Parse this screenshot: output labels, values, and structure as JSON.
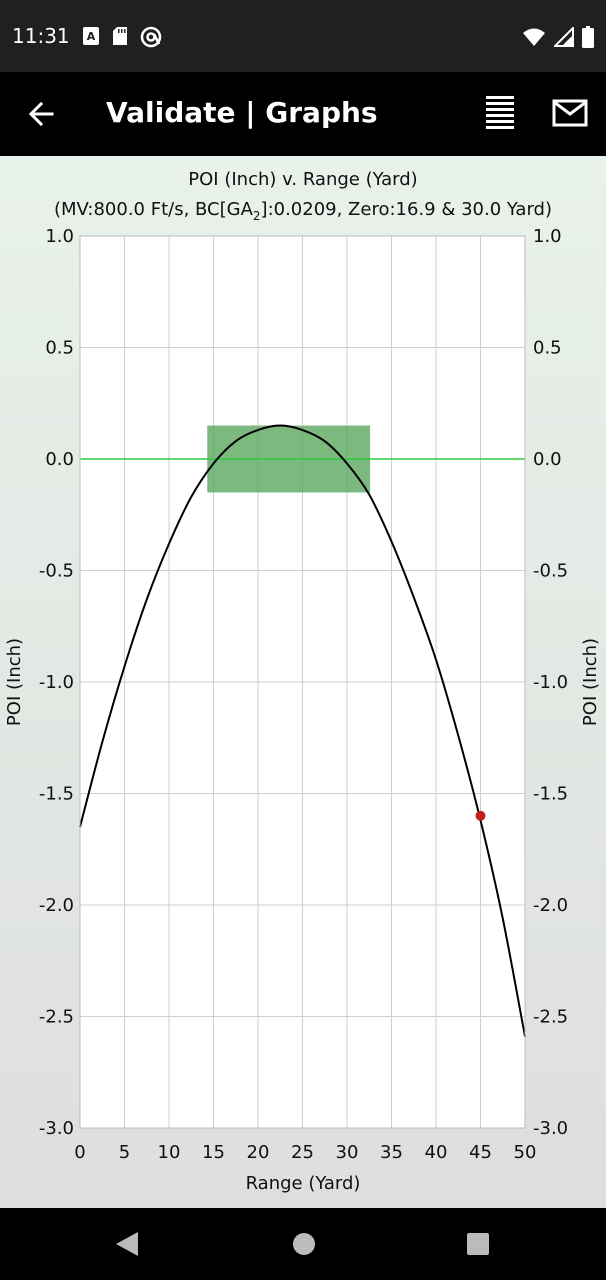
{
  "status_bar": {
    "time": "11:31",
    "left_icons": [
      "keyboard-a-icon",
      "sd-card-icon",
      "at-sign-icon"
    ],
    "right_icons": [
      "wifi-icon",
      "cell-signal-icon",
      "battery-icon"
    ]
  },
  "app_bar": {
    "title": "Validate | Graphs",
    "icons": [
      "back-arrow-icon",
      "menu-lines-icon",
      "mail-icon"
    ]
  },
  "chart_data": {
    "type": "line",
    "title": "POI (Inch) v. Range (Yard)",
    "subtitle_parts": {
      "pre": "(MV:800.0 Ft/s, BC[GA",
      "sub": "2",
      "post": "]:0.0209, Zero:16.9 & 30.0 Yard)"
    },
    "xlabel": "Range (Yard)",
    "ylabel": "POI (Inch)",
    "ylabel_right": "POI (Inch)",
    "xlim": [
      0,
      50
    ],
    "ylim": [
      -3.0,
      1.0
    ],
    "x_ticks": [
      "0",
      "5",
      "10",
      "15",
      "20",
      "25",
      "30",
      "35",
      "40",
      "45",
      "50"
    ],
    "x_tick_values": [
      0,
      5,
      10,
      15,
      20,
      25,
      30,
      35,
      40,
      45,
      50
    ],
    "y_ticks": [
      "1.0",
      "0.5",
      "0.0",
      "-0.5",
      "-1.0",
      "-1.5",
      "-2.0",
      "-2.5",
      "-3.0"
    ],
    "y_tick_values": [
      1.0,
      0.5,
      0.0,
      -0.5,
      -1.0,
      -1.5,
      -2.0,
      -2.5,
      -3.0
    ],
    "grid": true,
    "series": [
      {
        "color": "#000000",
        "x": [
          0,
          2.5,
          5,
          7.5,
          10,
          12.5,
          15,
          17.5,
          20,
          22.5,
          25,
          27.5,
          30,
          32.5,
          35,
          37.5,
          40,
          42.5,
          45,
          47.5,
          50
        ],
        "y": [
          -1.65,
          -1.27,
          -0.93,
          -0.63,
          -0.38,
          -0.17,
          -0.02,
          0.08,
          0.13,
          0.15,
          0.13,
          0.08,
          -0.02,
          -0.16,
          -0.37,
          -0.62,
          -0.9,
          -1.24,
          -1.62,
          -2.06,
          -2.59
        ]
      }
    ],
    "zero_line": {
      "y": 0.0,
      "color": "#2ecc40"
    },
    "highlight_box": {
      "x0": 14.3,
      "x1": 32.6,
      "y0": -0.15,
      "y1": 0.15,
      "color": "#5aa85f"
    },
    "marker_point": {
      "x": 45,
      "y": -1.6,
      "color": "#c0201a"
    }
  }
}
